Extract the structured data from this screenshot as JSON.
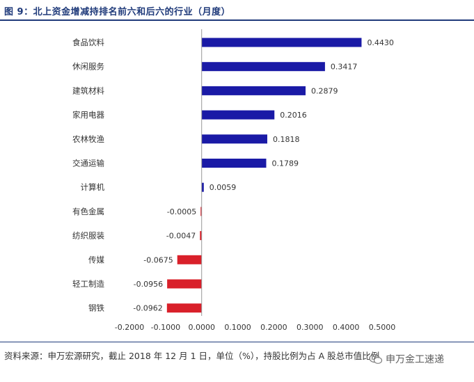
{
  "title": "图 9：北上资金增减持排名前六和后六的行业（月度）",
  "footer": "资料来源：申万宏源研究，截止 2018 年 12 月 1 日，单位（%），持股比例为占 A 股总市值比例",
  "watermark": "申万金工速递",
  "colors": {
    "positive": "#1a1aa6",
    "negative": "#d9202a",
    "accent": "#1f3a7a"
  },
  "chart_data": {
    "type": "bar",
    "orientation": "horizontal",
    "categories": [
      "食品饮料",
      "休闲服务",
      "建筑材料",
      "家用电器",
      "农林牧渔",
      "交通运输",
      "计算机",
      "有色金属",
      "纺织服装",
      "传媒",
      "轻工制造",
      "钢铁"
    ],
    "values": [
      0.443,
      0.3417,
      0.2879,
      0.2016,
      0.1818,
      0.1789,
      0.0059,
      -0.0005,
      -0.0047,
      -0.0675,
      -0.0956,
      -0.0962
    ],
    "value_labels": [
      "0.4430",
      "0.3417",
      "0.2879",
      "0.2016",
      "0.1818",
      "0.1789",
      "0.0059",
      "-0.0005",
      "-0.0047",
      "-0.0675",
      "-0.0956",
      "-0.0962"
    ],
    "xlim": [
      -0.2,
      0.5
    ],
    "xticks": [
      -0.2,
      -0.1,
      0.0,
      0.1,
      0.2,
      0.3,
      0.4,
      0.5
    ],
    "xtick_labels": [
      "-0.2000",
      "-0.1000",
      "0.0000",
      "0.1000",
      "0.2000",
      "0.3000",
      "0.4000",
      "0.5000"
    ],
    "grid": false
  }
}
